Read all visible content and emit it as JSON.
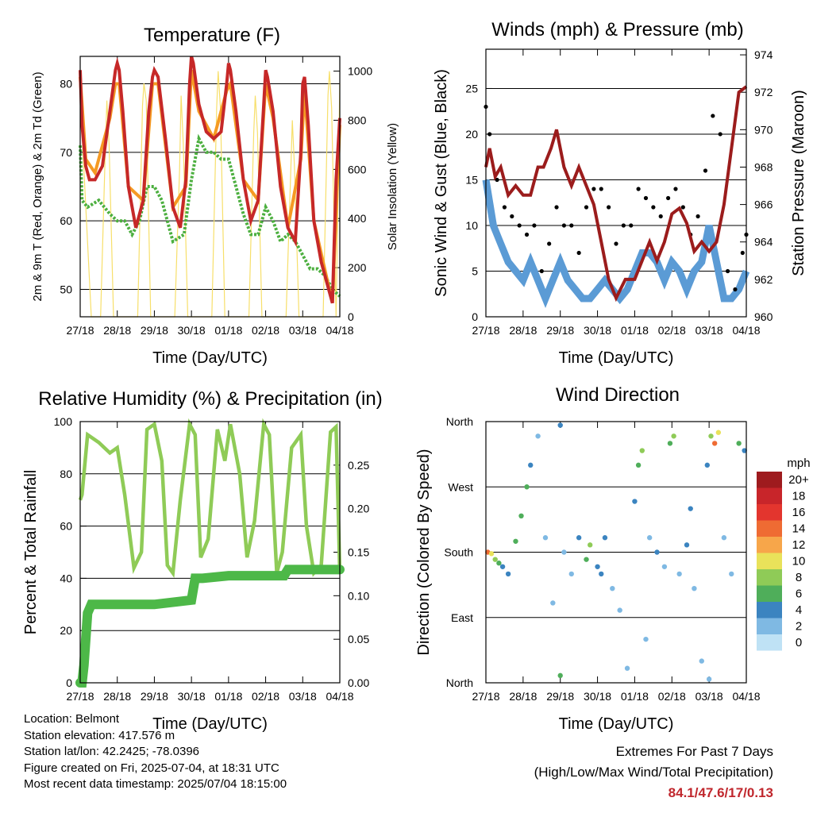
{
  "days": [
    "27/18",
    "28/18",
    "29/18",
    "30/18",
    "01/18",
    "02/18",
    "03/18",
    "04/18"
  ],
  "colors": {
    "temp2m": "#c62828",
    "temp9m": "#f59a23",
    "dew": "#4caf3f",
    "solar": "#f7df6a",
    "wind": "#5b9bd5",
    "gust": "#000000",
    "pressure": "#9b1c1c",
    "rh": "#8fcb57",
    "precip": "#4db848"
  },
  "chart_data": [
    {
      "type": "line",
      "title": "Temperature (F)",
      "xlabel": "Time (Day/UTC)",
      "ylabel": "2m & 9m T (Red, Orange) & 2m Td (Green)",
      "y2label": "Solar Insolation (Yellow)",
      "ylim": [
        46,
        84
      ],
      "y2lim": [
        0,
        1060
      ],
      "yticks": [
        50,
        60,
        70,
        80
      ],
      "y2ticks": [
        0,
        200,
        400,
        600,
        800,
        1000
      ],
      "grid": true,
      "series": [
        {
          "key": "temp2m",
          "x": [
            0,
            0.05,
            0.15,
            0.25,
            0.4,
            0.6,
            0.8,
            0.95,
            1.0,
            1.05,
            1.15,
            1.3,
            1.5,
            1.7,
            1.85,
            1.95,
            2.0,
            2.1,
            2.3,
            2.5,
            2.7,
            2.85,
            2.95,
            3.0,
            3.05,
            3.2,
            3.4,
            3.6,
            3.8,
            3.95,
            4.0,
            4.05,
            4.2,
            4.4,
            4.6,
            4.8,
            4.95,
            5.0,
            5.05,
            5.2,
            5.4,
            5.6,
            5.8,
            5.95,
            6.0,
            6.05,
            6.15,
            6.3,
            6.5,
            6.8,
            6.9,
            7.0
          ],
          "y": [
            82,
            74,
            68,
            66,
            66,
            68,
            76,
            82,
            83,
            82,
            76,
            65,
            59,
            63,
            76,
            81,
            82,
            81,
            72,
            62,
            59,
            66,
            80,
            84,
            83,
            77,
            73,
            72,
            73,
            80,
            83,
            82,
            76,
            66,
            60,
            63,
            77,
            82,
            81,
            76,
            65,
            59,
            57,
            70,
            80,
            81,
            74,
            60,
            54,
            48,
            66,
            75
          ]
        },
        {
          "key": "temp9m",
          "x": [
            0,
            0.15,
            0.4,
            0.8,
            0.95,
            1.05,
            1.3,
            1.7,
            1.95,
            2.1,
            2.5,
            2.85,
            3.0,
            3.2,
            3.6,
            3.95,
            4.05,
            4.4,
            4.8,
            5.0,
            5.2,
            5.6,
            5.95,
            6.05,
            6.3,
            6.8,
            7.0
          ],
          "y": [
            81,
            69,
            67,
            75,
            80,
            80,
            65,
            63,
            80,
            80,
            62,
            65,
            82,
            76,
            72,
            79,
            80,
            66,
            63,
            80,
            75,
            59,
            69,
            79,
            60,
            48,
            74
          ]
        },
        {
          "key": "dew",
          "x": [
            0,
            0.05,
            0.2,
            0.5,
            0.8,
            1.0,
            1.2,
            1.4,
            1.6,
            1.8,
            2.0,
            2.2,
            2.5,
            2.8,
            3.0,
            3.2,
            3.4,
            3.6,
            3.8,
            4.0,
            4.2,
            4.4,
            4.6,
            4.8,
            5.0,
            5.2,
            5.4,
            5.6,
            5.8,
            6.0,
            6.2,
            6.4,
            6.6,
            6.8,
            7.0
          ],
          "y": [
            71,
            63,
            62,
            63,
            61,
            60,
            60,
            58,
            60,
            65,
            65,
            63,
            57,
            58,
            66,
            72,
            70,
            70,
            69,
            69,
            65,
            61,
            58,
            58,
            62,
            60,
            57,
            58,
            57,
            55,
            53,
            53,
            52,
            50,
            49
          ]
        },
        {
          "key": "solar",
          "x": [
            0,
            0.3,
            0.55,
            0.68,
            0.72,
            0.78,
            0.9,
            1.3,
            1.55,
            1.68,
            1.72,
            1.78,
            1.9,
            2.3,
            2.55,
            2.68,
            2.72,
            2.78,
            2.9,
            3.3,
            3.55,
            3.68,
            3.72,
            3.78,
            3.9,
            4.3,
            4.55,
            4.68,
            4.72,
            4.78,
            4.9,
            5.3,
            5.55,
            5.68,
            5.72,
            5.78,
            5.9,
            6.3,
            6.55,
            6.68,
            6.72,
            6.78,
            6.9,
            7.0
          ],
          "y": [
            900,
            0,
            0,
            700,
            880,
            700,
            0,
            0,
            0,
            860,
            950,
            880,
            0,
            0,
            0,
            600,
            900,
            700,
            0,
            0,
            0,
            850,
            1000,
            850,
            0,
            0,
            0,
            750,
            900,
            750,
            0,
            0,
            0,
            600,
            800,
            600,
            0,
            0,
            0,
            900,
            1000,
            850,
            0,
            950
          ]
        }
      ]
    },
    {
      "type": "scatter",
      "title": "Winds (mph) & Pressure (mb)",
      "xlabel": "Time (Day/UTC)",
      "ylabel": "Sonic Wind & Gust (Blue, Black)",
      "y2label": "Station Pressure (Maroon)",
      "ylim": [
        0,
        29.3
      ],
      "y2lim": [
        960,
        974.3
      ],
      "yticks": [
        0,
        5,
        10,
        15,
        20,
        25
      ],
      "y2ticks": [
        960,
        962,
        964,
        966,
        968,
        970,
        972,
        974
      ],
      "grid": true,
      "series": [
        {
          "key": "wind",
          "x": [
            0,
            0.2,
            0.4,
            0.6,
            0.8,
            1.0,
            1.2,
            1.4,
            1.6,
            1.8,
            2.0,
            2.2,
            2.4,
            2.6,
            2.8,
            3.0,
            3.2,
            3.4,
            3.6,
            3.8,
            4.0,
            4.2,
            4.4,
            4.6,
            4.8,
            5.0,
            5.2,
            5.4,
            5.6,
            5.8,
            6.0,
            6.2,
            6.4,
            6.6,
            6.8,
            7.0
          ],
          "y": [
            15,
            10,
            8,
            6,
            5,
            4,
            6,
            4,
            2,
            4,
            6,
            4,
            3,
            2,
            2,
            3,
            4,
            3,
            2,
            3,
            5,
            7,
            7,
            6,
            4,
            6,
            5,
            3,
            5,
            6,
            10,
            6,
            2,
            2,
            3,
            5
          ]
        },
        {
          "key": "gust",
          "x": [
            0,
            0.1,
            0.3,
            0.5,
            0.7,
            0.9,
            1.1,
            1.3,
            1.5,
            1.7,
            1.9,
            2.1,
            2.3,
            2.5,
            2.7,
            2.9,
            3.1,
            3.3,
            3.5,
            3.7,
            3.9,
            4.1,
            4.3,
            4.5,
            4.7,
            4.9,
            5.1,
            5.3,
            5.5,
            5.7,
            5.9,
            6.1,
            6.3,
            6.5,
            6.7,
            6.9,
            7.0
          ],
          "y": [
            23,
            20,
            15,
            12,
            11,
            10,
            9,
            10,
            5,
            8,
            12,
            10,
            10,
            7,
            12,
            14,
            14,
            12,
            8,
            10,
            10,
            14,
            13,
            12,
            11,
            13,
            14,
            12,
            9,
            11,
            16,
            22,
            20,
            5,
            3,
            7,
            9
          ]
        },
        {
          "key": "pressure",
          "x": [
            0,
            0.1,
            0.25,
            0.4,
            0.6,
            0.8,
            1.0,
            1.2,
            1.4,
            1.55,
            1.75,
            1.9,
            2.1,
            2.3,
            2.5,
            2.7,
            2.9,
            3.1,
            3.3,
            3.5,
            3.75,
            4.0,
            4.2,
            4.4,
            4.6,
            4.8,
            5.0,
            5.2,
            5.4,
            5.6,
            5.8,
            6.0,
            6.2,
            6.4,
            6.6,
            6.8,
            7.0
          ],
          "y": [
            968,
            969,
            967.5,
            968,
            966.5,
            967,
            966.5,
            966.5,
            968,
            968,
            969,
            970,
            968,
            967,
            968,
            967,
            966,
            964,
            962,
            961,
            962,
            962,
            963,
            964,
            963,
            964,
            965.5,
            965.8,
            965,
            963.5,
            964,
            963.5,
            964,
            966,
            969,
            972,
            972.3
          ]
        }
      ]
    },
    {
      "type": "line",
      "title": "Relative Humidity (%) & Precipitation (in)",
      "xlabel": "Time (Day/UTC)",
      "ylabel": "Percent & Total Rainfall",
      "ylim": [
        0,
        100
      ],
      "y2lim": [
        0,
        0.3
      ],
      "yticks": [
        0,
        20,
        40,
        60,
        80,
        100
      ],
      "y2ticks": [
        0.0,
        0.05,
        0.1,
        0.15,
        0.2,
        0.25
      ],
      "grid": true,
      "series": [
        {
          "key": "rh",
          "x": [
            0,
            0.05,
            0.2,
            0.5,
            0.8,
            1.0,
            1.2,
            1.45,
            1.65,
            1.8,
            2.0,
            2.2,
            2.35,
            2.5,
            2.7,
            2.95,
            3.1,
            3.25,
            3.45,
            3.7,
            3.9,
            4.05,
            4.3,
            4.5,
            4.7,
            4.95,
            5.1,
            5.3,
            5.45,
            5.7,
            5.95,
            6.1,
            6.3,
            6.5,
            6.75,
            6.9,
            7.0
          ],
          "y": [
            70,
            72,
            95,
            92,
            88,
            90,
            72,
            44,
            50,
            97,
            99,
            85,
            45,
            42,
            70,
            99,
            95,
            48,
            55,
            97,
            85,
            99,
            80,
            48,
            62,
            99,
            95,
            42,
            50,
            90,
            95,
            60,
            42,
            45,
            96,
            98,
            42
          ]
        },
        {
          "key": "precip",
          "x": [
            0,
            0.05,
            0.1,
            0.2,
            0.3,
            0.5,
            1.0,
            2.0,
            3.0,
            3.1,
            3.3,
            4.0,
            4.5,
            5.0,
            5.5,
            5.6,
            6.0,
            7.0
          ],
          "y": [
            0,
            0,
            0.02,
            0.08,
            0.09,
            0.09,
            0.09,
            0.09,
            0.095,
            0.12,
            0.12,
            0.123,
            0.123,
            0.123,
            0.123,
            0.13,
            0.13,
            0.13
          ]
        }
      ]
    },
    {
      "type": "scatter",
      "title": "Wind Direction",
      "xlabel": "Time (Day/UTC)",
      "ylabel": "Direction (Colored By Speed)",
      "yticks": [
        "North",
        "East",
        "South",
        "West",
        "North"
      ],
      "grid": true,
      "legend": {
        "title": "mph",
        "labels": [
          "20+",
          "18",
          "16",
          "14",
          "12",
          "10",
          "8",
          "6",
          "4",
          "2",
          "0"
        ],
        "colors": [
          "#9e1b1e",
          "#c8252a",
          "#e3352e",
          "#ef6b33",
          "#f7a64a",
          "#e9e25a",
          "#8fcb57",
          "#4fae5a",
          "#3b84c0",
          "#7fb9e3",
          "#bfe2f5"
        ]
      },
      "points": [
        [
          0.05,
          180,
          14
        ],
        [
          0.15,
          178,
          10
        ],
        [
          0.25,
          170,
          8
        ],
        [
          0.35,
          165,
          6
        ],
        [
          0.45,
          160,
          4
        ],
        [
          0.6,
          150,
          4
        ],
        [
          0.8,
          195,
          6
        ],
        [
          0.95,
          230,
          6
        ],
        [
          1.1,
          270,
          6
        ],
        [
          1.2,
          300,
          4
        ],
        [
          1.4,
          340,
          2
        ],
        [
          1.6,
          200,
          2
        ],
        [
          1.8,
          110,
          2
        ],
        [
          2.0,
          355,
          4
        ],
        [
          2.1,
          180,
          2
        ],
        [
          2.3,
          150,
          2
        ],
        [
          2.5,
          200,
          4
        ],
        [
          2.7,
          170,
          6
        ],
        [
          2.8,
          190,
          8
        ],
        [
          3.0,
          160,
          4
        ],
        [
          3.1,
          150,
          4
        ],
        [
          3.2,
          200,
          4
        ],
        [
          3.4,
          130,
          2
        ],
        [
          3.6,
          100,
          2
        ],
        [
          3.8,
          20,
          2
        ],
        [
          4.0,
          250,
          4
        ],
        [
          4.1,
          300,
          6
        ],
        [
          4.2,
          320,
          8
        ],
        [
          4.4,
          200,
          2
        ],
        [
          4.6,
          180,
          4
        ],
        [
          4.8,
          160,
          2
        ],
        [
          4.95,
          330,
          6
        ],
        [
          5.05,
          340,
          8
        ],
        [
          5.2,
          150,
          2
        ],
        [
          5.4,
          190,
          4
        ],
        [
          5.6,
          130,
          2
        ],
        [
          5.8,
          30,
          2
        ],
        [
          5.95,
          300,
          4
        ],
        [
          6.05,
          340,
          8
        ],
        [
          6.15,
          330,
          14
        ],
        [
          6.25,
          345,
          10
        ],
        [
          6.4,
          200,
          2
        ],
        [
          6.6,
          150,
          2
        ],
        [
          6.8,
          330,
          6
        ],
        [
          6.95,
          320,
          4
        ],
        [
          6.0,
          5,
          2
        ],
        [
          2.0,
          10,
          6
        ],
        [
          4.3,
          60,
          2
        ],
        [
          5.5,
          240,
          4
        ]
      ]
    }
  ],
  "info": {
    "location": "Location: Belmont",
    "elevation": "Station elevation: 417.576 m",
    "latlon": "Station lat/lon: 42.2425; -78.0396",
    "created": "Figure created on Fri, 2025-07-04, at 18:31 UTC",
    "recent": "Most recent data timestamp: 2025/07/04 18:15:00"
  },
  "extremes": {
    "line1": "Extremes For Past 7 Days",
    "line2": "(High/Low/Max Wind/Total Precipitation)",
    "values": "84.1/47.6/17/0.13"
  }
}
